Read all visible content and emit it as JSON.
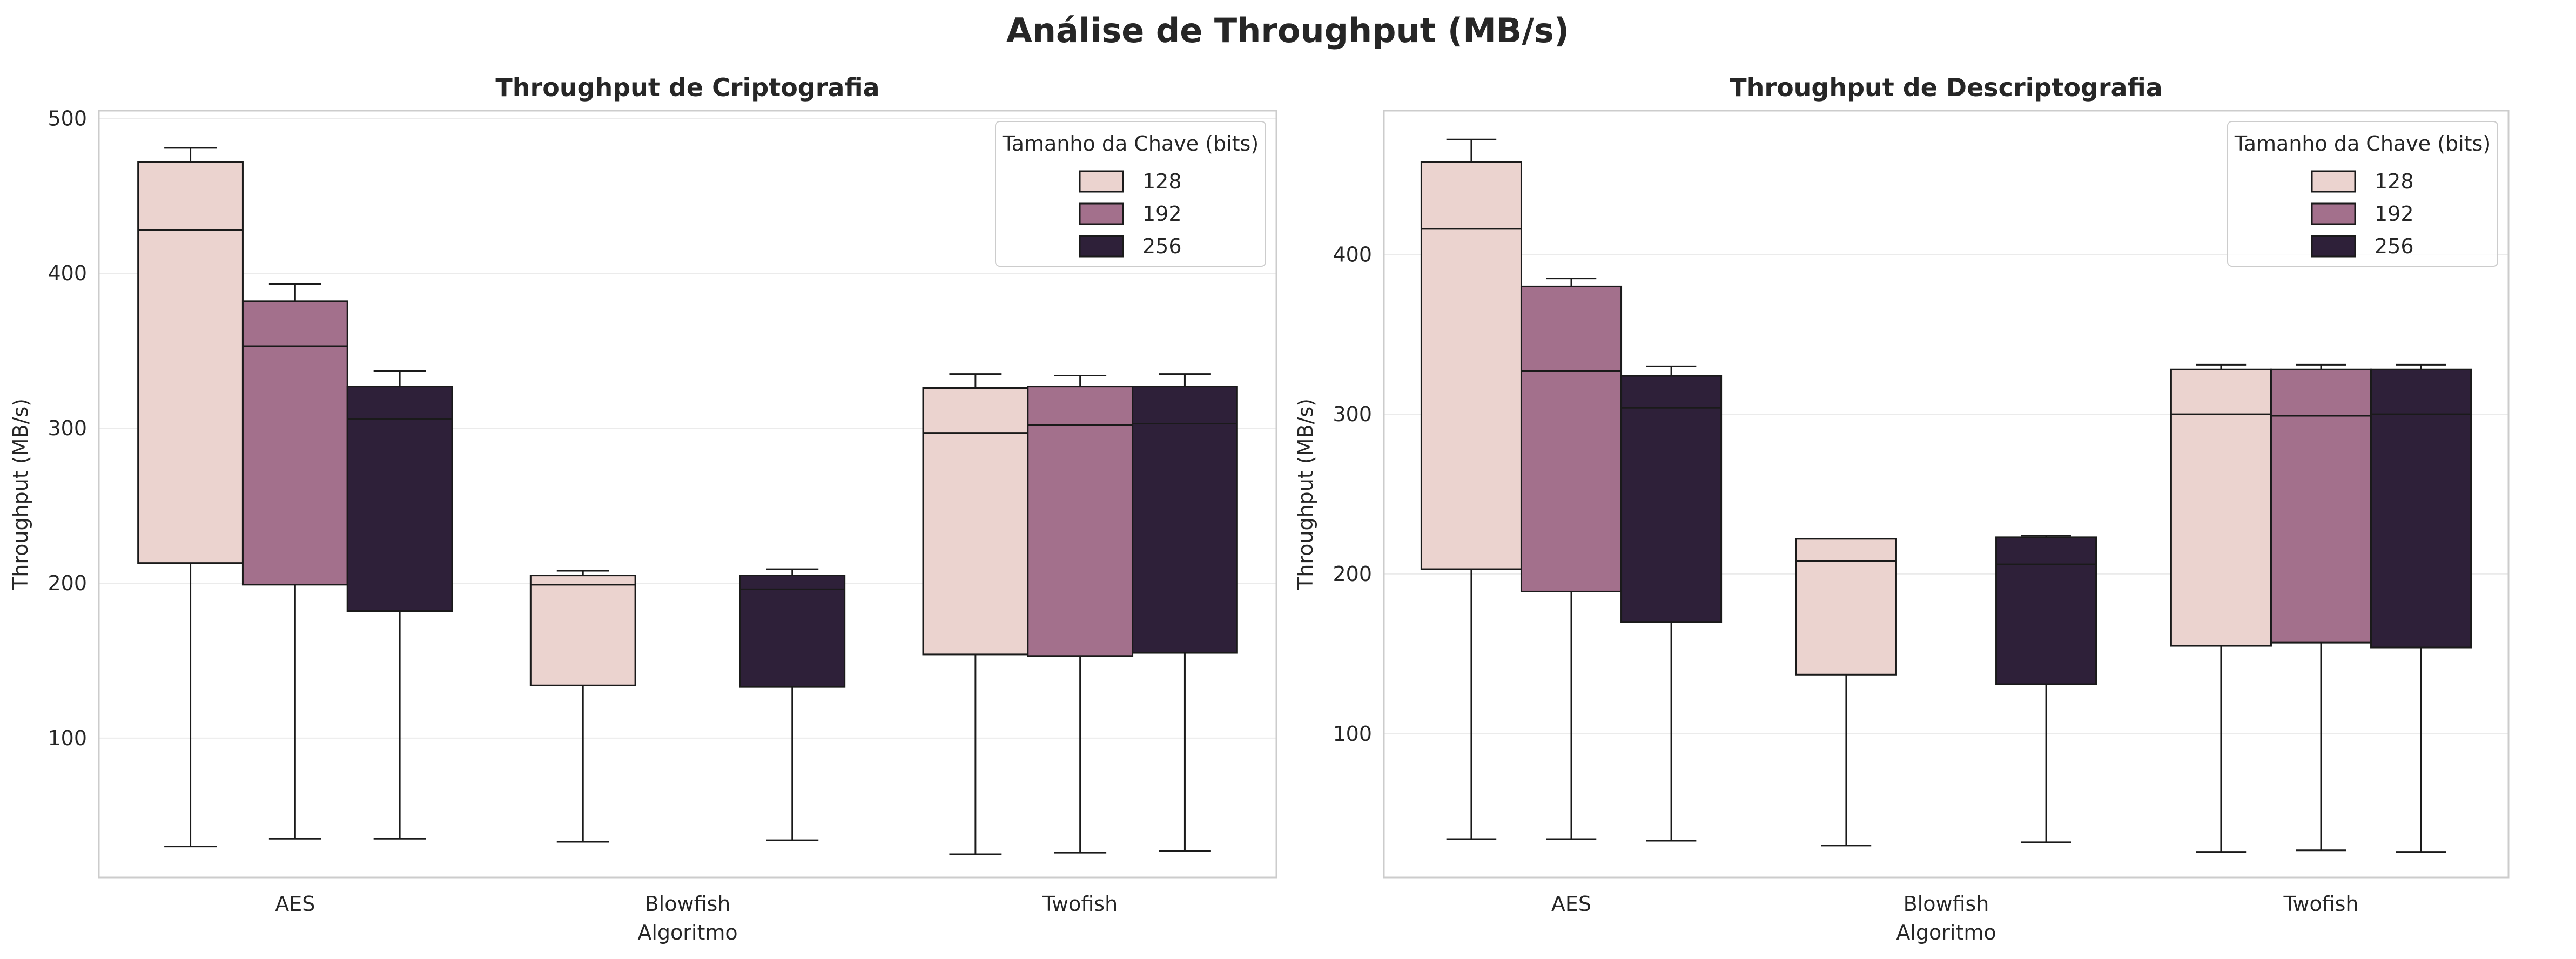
{
  "figure_title": "Análise de Throughput (MB/s)",
  "chart_data": [
    {
      "type": "box",
      "title": "Throughput de Criptografia",
      "xlabel": "Algoritmo",
      "ylabel": "Throughput (MB/s)",
      "ylim": [
        10,
        505
      ],
      "yticks": [
        100,
        200,
        300,
        400,
        500
      ],
      "grid": true,
      "categories": [
        "AES",
        "Blowfish",
        "Twofish"
      ],
      "legend": {
        "title": "Tamanho da Chave (bits)",
        "placement": "top-right"
      },
      "series": [
        {
          "name": "128",
          "color": "#ebd3cf",
          "boxes": [
            {
              "category": "AES",
              "min": 30,
              "q1": 213,
              "median": 428,
              "q3": 472,
              "max": 481
            },
            {
              "category": "Blowfish",
              "min": 33,
              "q1": 134,
              "median": 199,
              "q3": 205,
              "max": 208
            },
            {
              "category": "Twofish",
              "min": 25,
              "q1": 154,
              "median": 297,
              "q3": 326,
              "max": 335
            }
          ]
        },
        {
          "name": "192",
          "color": "#a3708c",
          "boxes": [
            {
              "category": "AES",
              "min": 35,
              "q1": 199,
              "median": 353,
              "q3": 382,
              "max": 393
            },
            {
              "category": "Twofish",
              "min": 26,
              "q1": 153,
              "median": 302,
              "q3": 327,
              "max": 334
            }
          ]
        },
        {
          "name": "256",
          "color": "#2e2039",
          "boxes": [
            {
              "category": "AES",
              "min": 35,
              "q1": 182,
              "median": 306,
              "q3": 327,
              "max": 337
            },
            {
              "category": "Blowfish",
              "min": 34,
              "q1": 133,
              "median": 196,
              "q3": 205,
              "max": 209
            },
            {
              "category": "Twofish",
              "min": 27,
              "q1": 155,
              "median": 303,
              "q3": 327,
              "max": 335
            }
          ]
        }
      ]
    },
    {
      "type": "box",
      "title": "Throughput de Descriptografia",
      "xlabel": "Algoritmo",
      "ylabel": "Throughput (MB/s)",
      "ylim": [
        10,
        490
      ],
      "yticks": [
        100,
        200,
        300,
        400
      ],
      "grid": true,
      "categories": [
        "AES",
        "Blowfish",
        "Twofish"
      ],
      "legend": {
        "title": "Tamanho da Chave (bits)",
        "placement": "top-right"
      },
      "series": [
        {
          "name": "128",
          "color": "#ebd3cf",
          "boxes": [
            {
              "category": "AES",
              "min": 34,
              "q1": 203,
              "median": 416,
              "q3": 458,
              "max": 472
            },
            {
              "category": "Blowfish",
              "min": 30,
              "q1": 137,
              "median": 208,
              "q3": 222,
              "max": 222
            },
            {
              "category": "Twofish",
              "min": 26,
              "q1": 155,
              "median": 300,
              "q3": 328,
              "max": 331
            }
          ]
        },
        {
          "name": "192",
          "color": "#a3708c",
          "boxes": [
            {
              "category": "AES",
              "min": 34,
              "q1": 189,
              "median": 327,
              "q3": 380,
              "max": 385
            },
            {
              "category": "Twofish",
              "min": 27,
              "q1": 157,
              "median": 299,
              "q3": 328,
              "max": 331
            }
          ]
        },
        {
          "name": "256",
          "color": "#2e2039",
          "boxes": [
            {
              "category": "AES",
              "min": 33,
              "q1": 170,
              "median": 304,
              "q3": 324,
              "max": 330
            },
            {
              "category": "Blowfish",
              "min": 32,
              "q1": 131,
              "median": 206,
              "q3": 223,
              "max": 224
            },
            {
              "category": "Twofish",
              "min": 26,
              "q1": 154,
              "median": 300,
              "q3": 328,
              "max": 331
            }
          ]
        }
      ]
    }
  ]
}
